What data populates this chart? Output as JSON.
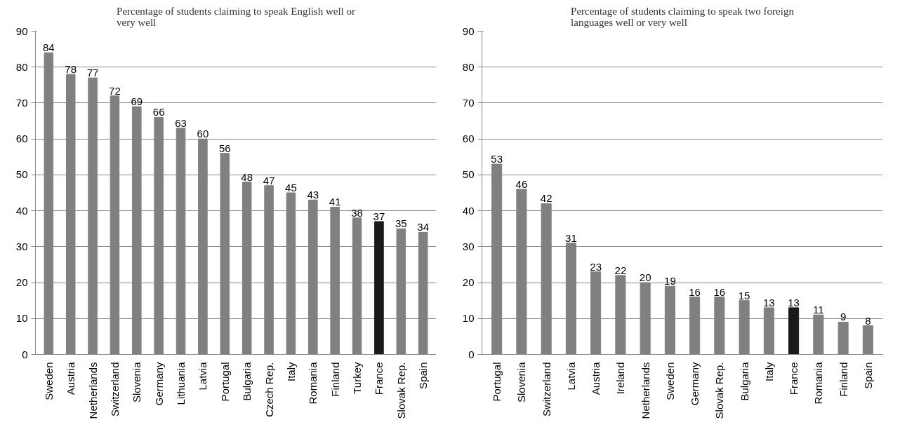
{
  "chart_data": [
    {
      "type": "bar",
      "title": "Percentage of students claiming to speak English well or very well",
      "categories": [
        "Sweden",
        "Austria",
        "Netherlands",
        "Switzerland",
        "Slovenia",
        "Germany",
        "Lithuania",
        "Latvia",
        "Portugal",
        "Bulgaria",
        "Czech Rep.",
        "Italy",
        "Romania",
        "Finland",
        "Turkey",
        "France",
        "Slovak Rep.",
        "Spain"
      ],
      "values": [
        84,
        78,
        77,
        72,
        69,
        66,
        63,
        60,
        56,
        48,
        47,
        45,
        43,
        41,
        38,
        37,
        35,
        34
      ],
      "colors": [
        "#808080",
        "#808080",
        "#808080",
        "#808080",
        "#808080",
        "#808080",
        "#808080",
        "#808080",
        "#808080",
        "#808080",
        "#808080",
        "#808080",
        "#808080",
        "#808080",
        "#808080",
        "#1a1a1a",
        "#808080",
        "#808080"
      ],
      "ylim": [
        0,
        90
      ],
      "yticks": [
        0,
        10,
        20,
        30,
        40,
        50,
        60,
        70,
        80,
        90
      ],
      "grid": "y",
      "data_labels": true
    },
    {
      "type": "bar",
      "title": "Percentage of students claiming to speak two foreign languages well or very well",
      "categories": [
        "Portugal",
        "Slovenia",
        "Switzerland",
        "Latvia",
        "Austria",
        "Ireland",
        "Netherlands",
        "Sweden",
        "Germany",
        "Slovak Rep.",
        "Bulgaria",
        "Italy",
        "France",
        "Romania",
        "Finland",
        "Spain"
      ],
      "values": [
        53,
        46,
        42,
        31,
        23,
        22,
        20,
        19,
        16,
        16,
        15,
        13,
        13,
        11,
        9,
        8
      ],
      "colors": [
        "#808080",
        "#808080",
        "#808080",
        "#808080",
        "#808080",
        "#808080",
        "#808080",
        "#808080",
        "#808080",
        "#808080",
        "#808080",
        "#808080",
        "#1a1a1a",
        "#808080",
        "#808080",
        "#808080"
      ],
      "ylim": [
        0,
        90
      ],
      "yticks": [
        0,
        10,
        20,
        30,
        40,
        50,
        60,
        70,
        80,
        90
      ],
      "grid": "y",
      "data_labels": true
    }
  ]
}
